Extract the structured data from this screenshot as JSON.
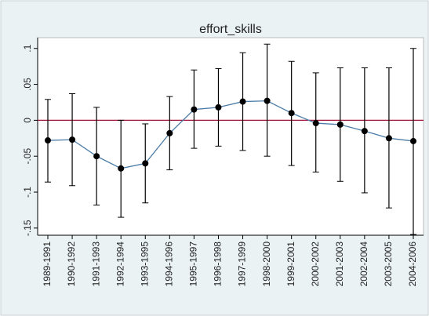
{
  "chart_data": {
    "type": "errorbar-line",
    "title": "effort_skills",
    "categories": [
      "1989-1991",
      "1990-1992",
      "1991-1993",
      "1992-1994",
      "1993-1995",
      "1994-1996",
      "1995-1997",
      "1996-1998",
      "1997-1999",
      "1998-2000",
      "1999-2001",
      "2000-2002",
      "2001-2003",
      "2002-2004",
      "2003-2005",
      "2004-2006"
    ],
    "values": [
      -0.028,
      -0.027,
      -0.05,
      -0.067,
      -0.06,
      -0.018,
      0.015,
      0.018,
      0.026,
      0.027,
      0.01,
      -0.004,
      -0.006,
      -0.015,
      -0.025,
      -0.029
    ],
    "upper": [
      0.029,
      0.037,
      0.018,
      0,
      -0.005,
      0.033,
      0.07,
      0.072,
      0.094,
      0.106,
      0.082,
      0.066,
      0.073,
      0.073,
      0.073,
      0.1
    ],
    "lower": [
      -0.086,
      -0.091,
      -0.118,
      -0.135,
      -0.115,
      -0.069,
      -0.039,
      -0.036,
      -0.042,
      -0.05,
      -0.063,
      -0.072,
      -0.085,
      -0.101,
      -0.122,
      -0.159
    ],
    "color": "#4a7ba6",
    "marker_color": "#000000",
    "errorbar_color": "#000000",
    "reference_line": {
      "value": 0,
      "color": "#a01238"
    },
    "ylim": [
      -0.16,
      0.115
    ],
    "yticks": [
      {
        "value": -0.15,
        "label": "-.15"
      },
      {
        "value": -0.1,
        "label": "-.1"
      },
      {
        "value": -0.05,
        "label": "-.05"
      },
      0,
      {
        "value": 0.05,
        "label": ".05"
      },
      {
        "value": 0.1,
        "label": ".1"
      }
    ],
    "grid": false
  }
}
